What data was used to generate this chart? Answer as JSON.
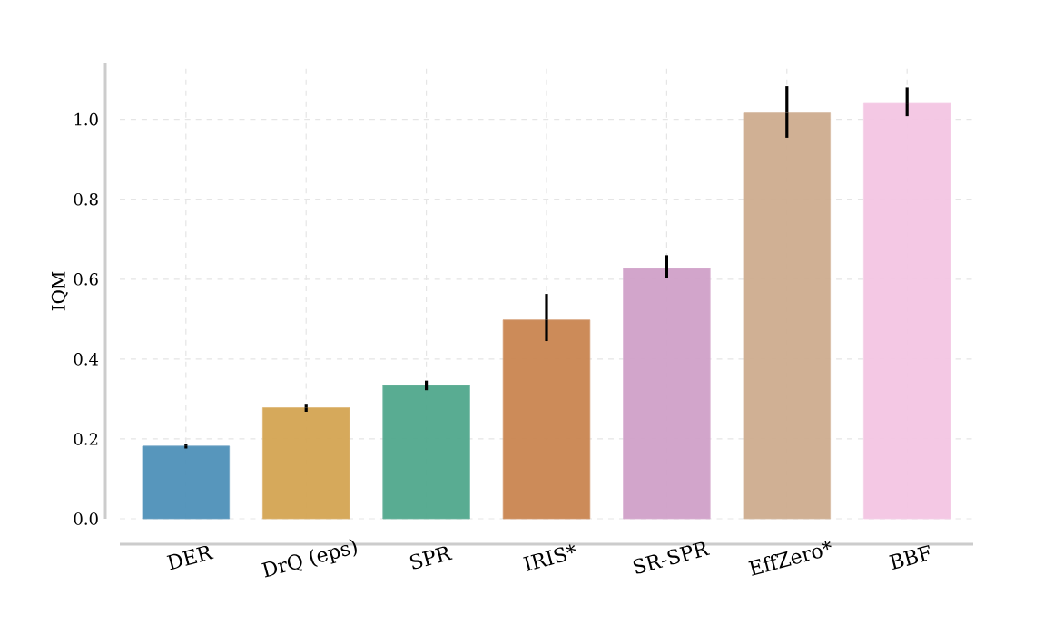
{
  "chart_data": {
    "type": "bar",
    "ylabel": "IQM",
    "categories": [
      "DER",
      "DrQ (eps)",
      "SPR",
      "IRIS*",
      "SR-SPR",
      "EffZero*",
      "BBF"
    ],
    "values": [
      0.182,
      0.278,
      0.334,
      0.498,
      0.627,
      1.016,
      1.04
    ],
    "colors": [
      "#4e90b8",
      "#d4a452",
      "#50a88c",
      "#c98550",
      "#d0a0c8",
      "#cdac8e",
      "#f3c5e3"
    ],
    "errors": [
      [
        0.176,
        0.188
      ],
      [
        0.268,
        0.288
      ],
      [
        0.322,
        0.346
      ],
      [
        0.445,
        0.563
      ],
      [
        0.604,
        0.66
      ],
      [
        0.954,
        1.083
      ],
      [
        1.008,
        1.08
      ]
    ],
    "ylim": [
      0,
      1.14
    ],
    "yticks": [
      {
        "value": 0,
        "label": "0.0"
      },
      0.2,
      0.4,
      0.6,
      0.8,
      {
        "value": 1,
        "label": "1.0"
      }
    ],
    "grid": true
  }
}
